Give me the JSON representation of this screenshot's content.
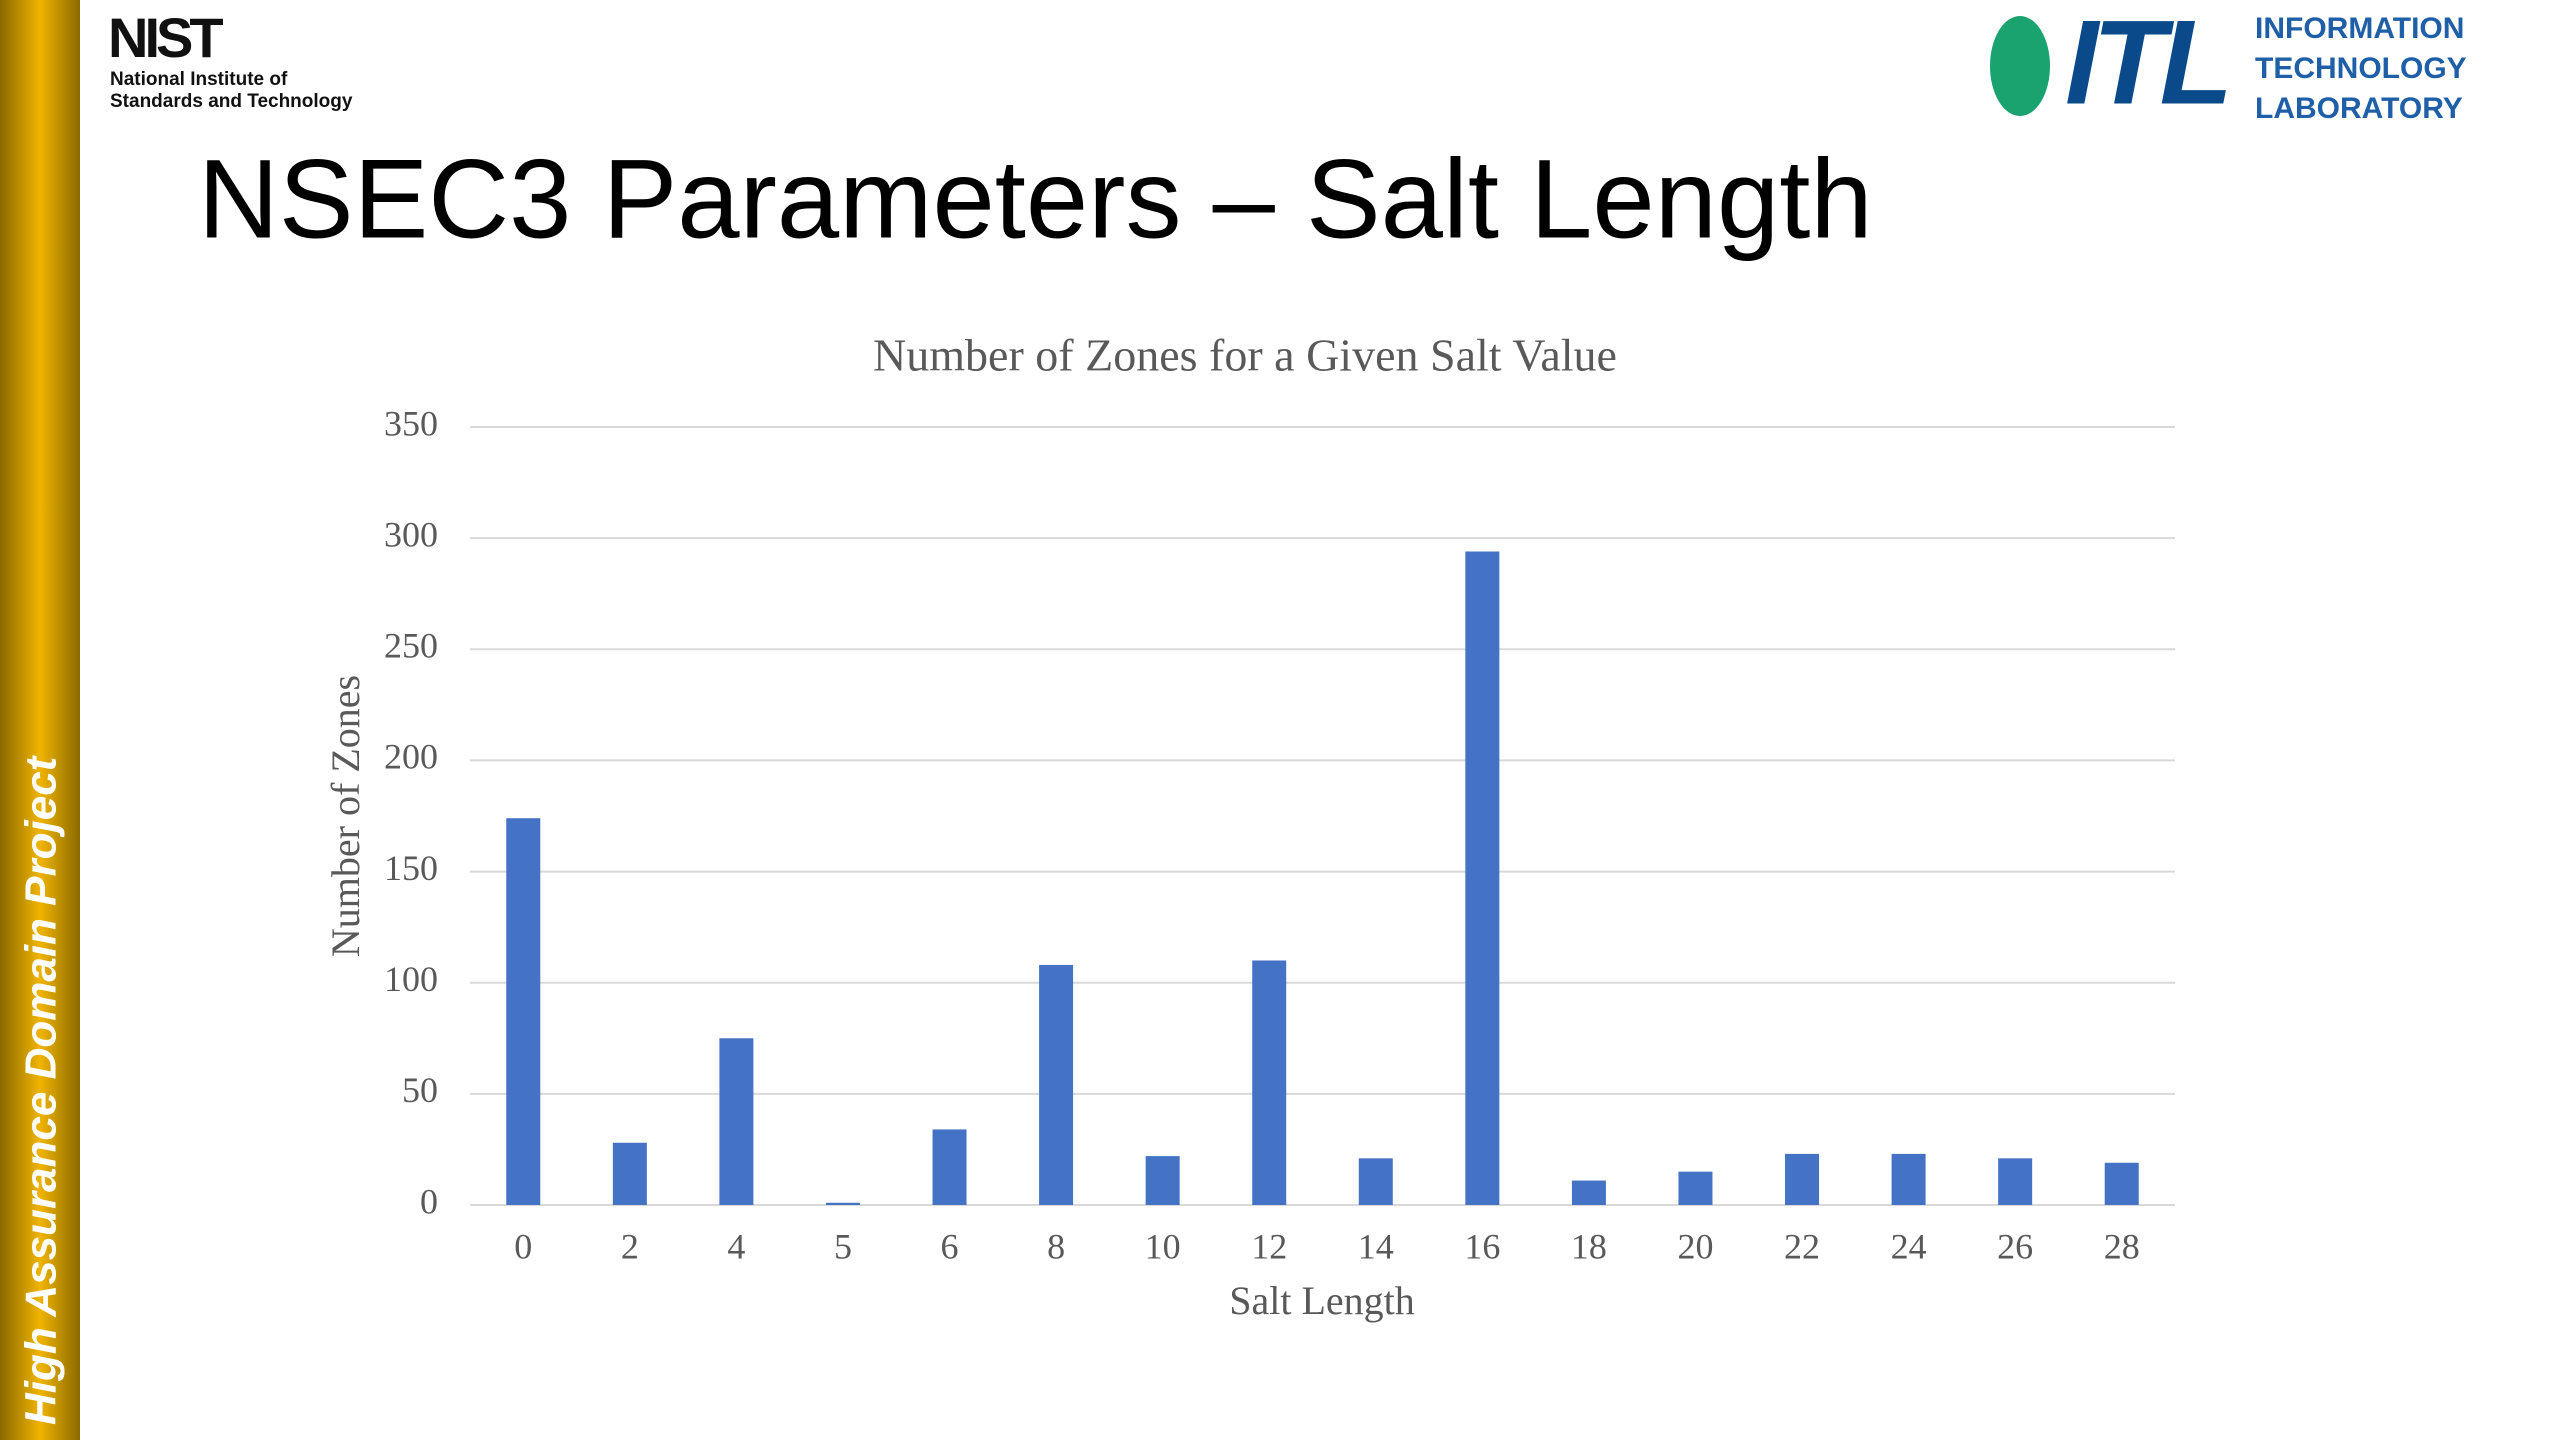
{
  "sidebar": {
    "text": "High Assurance Domain Project"
  },
  "nist_logo": {
    "name": "NIST",
    "lines": [
      "National Institute of",
      "Standards and Technology"
    ]
  },
  "itl_logo": {
    "mark": "ITL",
    "lines": [
      "INFORMATION",
      "TECHNOLOGY",
      "LABORATORY"
    ]
  },
  "slide_title": "NSEC3 Parameters – Salt Length",
  "chart_data": {
    "type": "bar",
    "title": "Number of Zones for a Given Salt Value",
    "x_label": "Salt Length",
    "y_label": "Number of Zones",
    "categories": [
      "0",
      "2",
      "4",
      "5",
      "6",
      "8",
      "10",
      "12",
      "14",
      "16",
      "18",
      "20",
      "22",
      "24",
      "26",
      "28"
    ],
    "values": [
      174,
      28,
      75,
      1,
      34,
      108,
      22,
      110,
      21,
      294,
      11,
      15,
      23,
      23,
      21,
      19
    ],
    "color": "#4472c4",
    "ylim": [
      0,
      350
    ],
    "yticks": [
      0,
      50,
      100,
      150,
      200,
      250,
      300,
      350
    ],
    "grid": true
  }
}
